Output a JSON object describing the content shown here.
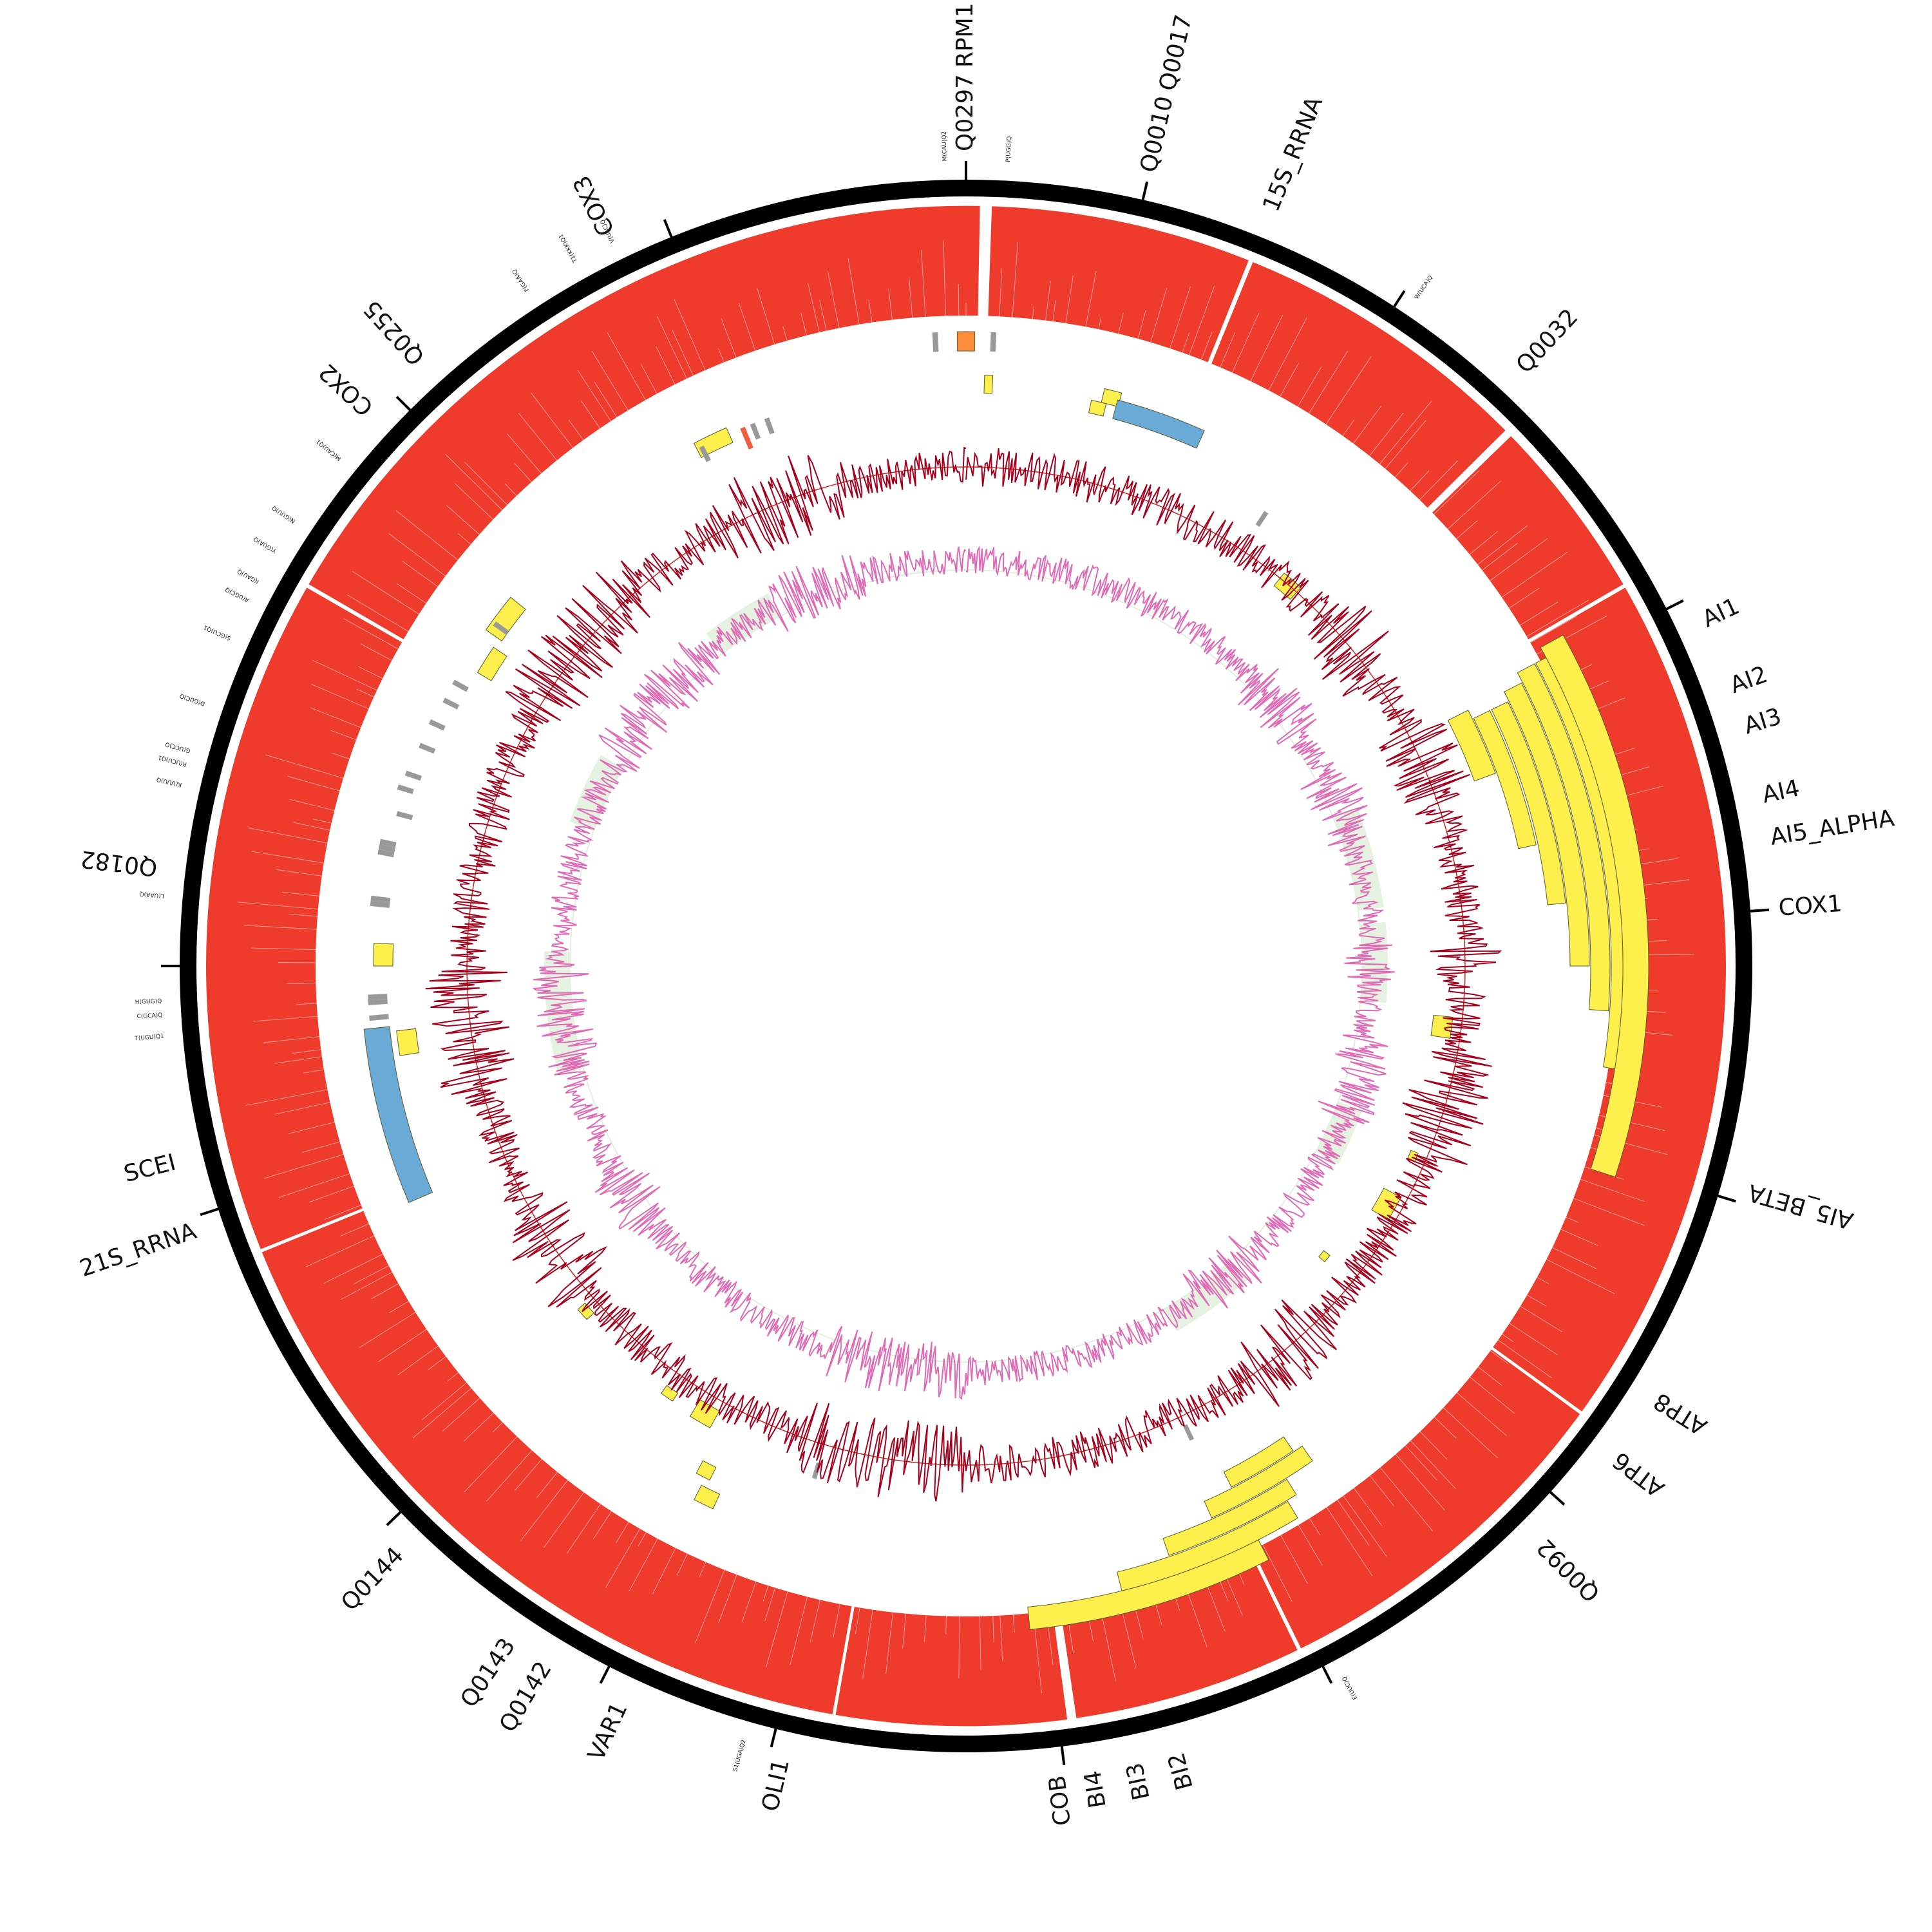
{
  "colors": {
    "backbone": "#000000",
    "coverage": "#ee3b2c",
    "exon_yellow": "#fdf04d",
    "exon_stroke": "#5a5a2a",
    "rrna_blue": "#6aaad6",
    "trna_grey": "#999999",
    "orange_feature": "#fe8c3a",
    "red_feature": "#f25c3f",
    "gc_dark": "#a5001c",
    "gc_line": "#cc2222",
    "skew_pink": "#e06ab6",
    "skew_fill": "#e6f2e1"
  },
  "gene_labels": [
    {
      "text": "Q0297",
      "angle": 0
    },
    {
      "text": "RPM1",
      "angle": 0
    },
    {
      "text": "Q0010",
      "angle": 13
    },
    {
      "text": "Q0017",
      "angle": 13
    },
    {
      "text": "15S_RRNA",
      "angle": 22
    },
    {
      "text": "Q0032",
      "angle": 43
    },
    {
      "text": "AI1",
      "angle": 65
    },
    {
      "text": "AI2",
      "angle": 70
    },
    {
      "text": "AI3",
      "angle": 73
    },
    {
      "text": "AI4",
      "angle": 78
    },
    {
      "text": "AI5_ALPHA",
      "angle": 81
    },
    {
      "text": "COX1",
      "angle": 86
    },
    {
      "text": "AI5_BETA",
      "angle": 106
    },
    {
      "text": "ATP8",
      "angle": 122
    },
    {
      "text": "ATP6",
      "angle": 127
    },
    {
      "text": "Q0092",
      "angle": 135
    },
    {
      "text": "BI2",
      "angle": 165
    },
    {
      "text": "BI3",
      "angle": 168
    },
    {
      "text": "BI4",
      "angle": 171
    },
    {
      "text": "COB",
      "angle": 173.5
    },
    {
      "text": "OLI1",
      "angle": 193
    },
    {
      "text": "VAR1",
      "angle": 205
    },
    {
      "text": "Q0142",
      "angle": 211
    },
    {
      "text": "Q0143",
      "angle": 214
    },
    {
      "text": "Q0144",
      "angle": 224
    },
    {
      "text": "21S_RRNA",
      "angle": 251
    },
    {
      "text": "SCEI",
      "angle": 256
    },
    {
      "text": "Q0182",
      "angle": 277
    },
    {
      "text": "COX2",
      "angle": 313
    },
    {
      "text": "Q0255",
      "angle": 318
    },
    {
      "text": "COX3",
      "angle": 334
    }
  ],
  "trna_labels": [
    {
      "text": "M(CAU)Q2",
      "angle": -1.5
    },
    {
      "text": "P(UGG)Q",
      "angle": 3
    },
    {
      "text": "W(UCA)Q",
      "angle": 34
    },
    {
      "text": "E(UUC)Q",
      "angle": 152
    },
    {
      "text": "S1(UGA)Q2",
      "angle": 196
    },
    {
      "text": "T(UGU)Q1",
      "angle": 265
    },
    {
      "text": "C(GCA)Q",
      "angle": 266.5
    },
    {
      "text": "H(GUG)Q",
      "angle": 267.5
    },
    {
      "text": "L(UAA)Q",
      "angle": 275
    },
    {
      "text": "K(UUU)Q",
      "angle": 283
    },
    {
      "text": "R(UCU)Q1",
      "angle": 284.5
    },
    {
      "text": "G(UCC)Q",
      "angle": 285.5
    },
    {
      "text": "D(GUC)Q",
      "angle": 289
    },
    {
      "text": "S(GCU)Q1",
      "angle": 294
    },
    {
      "text": "A(UGC)Q",
      "angle": 297
    },
    {
      "text": "I(GAU)Q",
      "angle": 298.5
    },
    {
      "text": "Y(GUA)Q",
      "angle": 301
    },
    {
      "text": "N(GUU)Q",
      "angle": 303.5
    },
    {
      "text": "M(CAU)Q1",
      "angle": 309
    },
    {
      "text": "F(GAA)Q",
      "angle": 327
    },
    {
      "text": "T1(KKK)Q1",
      "angle": 331
    },
    {
      "text": "V(UAC)Q",
      "angle": 334
    }
  ],
  "ticks": [
    0,
    13,
    33,
    63,
    86,
    107,
    132,
    153,
    173,
    194,
    207,
    226,
    252,
    270,
    315,
    338
  ]
}
